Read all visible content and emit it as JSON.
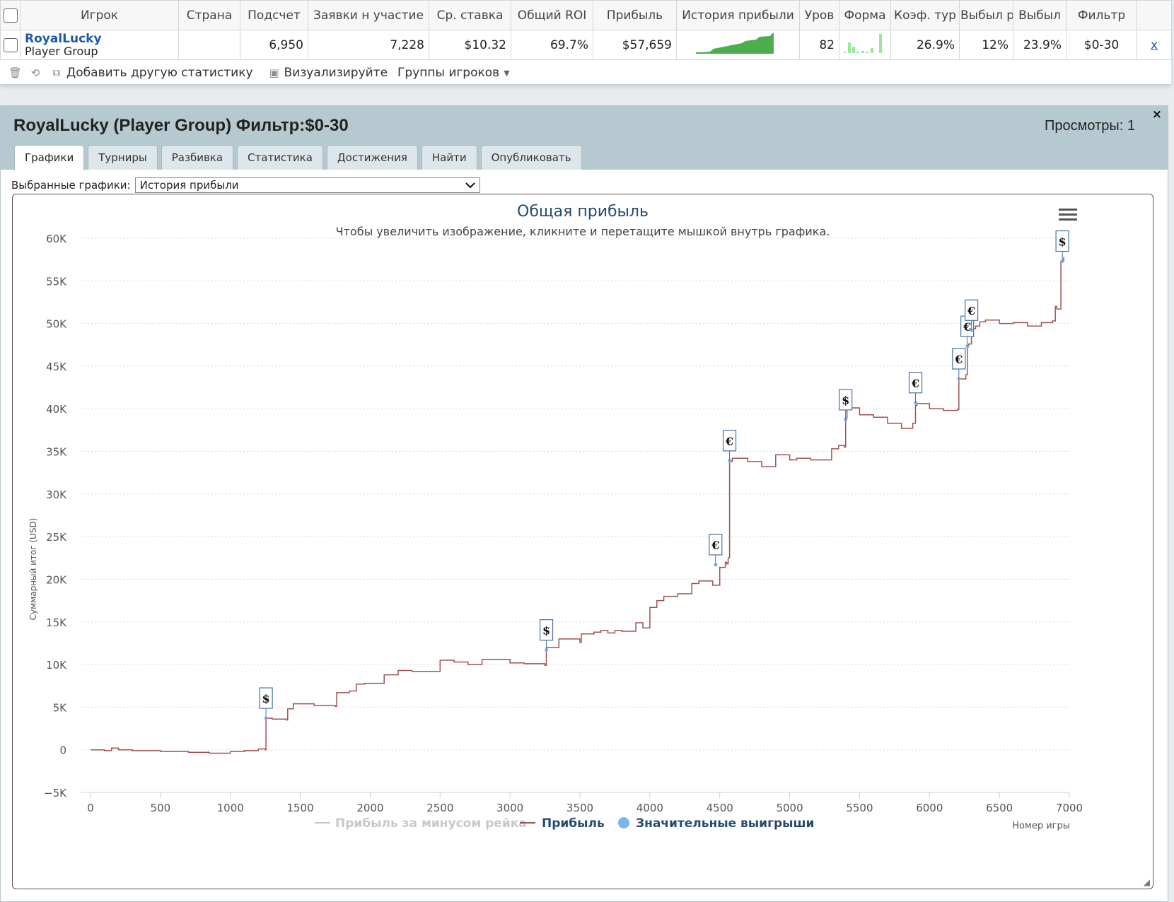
{
  "table": {
    "headers": [
      "Игрок",
      "Страна",
      "Подсчет",
      "Заявки н участие",
      "Ср. ставка",
      "Общий ROI",
      "Прибыль",
      "История прибыли",
      "Уров",
      "Форма",
      "Коэф. тур",
      "Выбыл р",
      "Выбыл",
      "Фильтр"
    ],
    "row": {
      "player_name": "RoyalLucky",
      "player_group": "Player Group",
      "country": "",
      "count": "6,950",
      "entries": "7,228",
      "avg_stake": "$10.32",
      "roi": "69.7%",
      "profit": "$57,659",
      "level": "82",
      "itm": "26.9%",
      "early": "12%",
      "late": "23.9%",
      "filter": "$0-30",
      "remove": "x"
    }
  },
  "toolbar": {
    "add_stat": "Добавить другую статистику",
    "visualize": "Визуализируйте",
    "groups": "Группы игроков"
  },
  "panel": {
    "title": "RoyalLucky (Player Group) Фильтр:$0-30",
    "views": "Просмотры: 1",
    "close": "×",
    "tabs": [
      "Графики",
      "Турниры",
      "Разбивка",
      "Статистика",
      "Достижения",
      "Найти",
      "Опубликовать"
    ],
    "selector_label": "Выбранные графики:",
    "selector_value": "История прибыли"
  },
  "colors": {
    "profit_line": "#a05252",
    "rake_line": "#c8c8c8",
    "big_win_marker": "#7cb5ec",
    "flag_border": "#4572a7",
    "title": "#274b6d"
  },
  "chart_data": {
    "type": "line",
    "title": "Общая прибыль",
    "subtitle": "Чтобы увеличить изображение, кликните и перетащите мышкой внутрь графика.",
    "xlabel": "Номер игры",
    "ylabel": "Суммарный итог (USD)",
    "xlim": [
      0,
      7000
    ],
    "ylim": [
      -5000,
      60000
    ],
    "x_ticks": [
      0,
      500,
      1000,
      1500,
      2000,
      2500,
      3000,
      3500,
      4000,
      4500,
      5000,
      5500,
      6000,
      6500,
      7000
    ],
    "y_ticks": [
      -5000,
      0,
      5000,
      10000,
      15000,
      20000,
      25000,
      30000,
      35000,
      40000,
      45000,
      50000,
      55000,
      60000
    ],
    "y_tick_labels": [
      "−5K",
      "0",
      "5K",
      "10K",
      "15K",
      "20K",
      "25K",
      "30K",
      "35K",
      "40K",
      "45K",
      "50K",
      "55K",
      "60K"
    ],
    "grid": true,
    "legend": {
      "placement": "bottom-center",
      "items": [
        "Прибыль за минусом рейка",
        "Прибыль",
        "Значительные выигрыши"
      ]
    },
    "series": [
      {
        "name": "Прибыль",
        "x": [
          0,
          100,
          150,
          200,
          300,
          500,
          700,
          850,
          1000,
          1100,
          1200,
          1250,
          1255,
          1300,
          1400,
          1410,
          1450,
          1600,
          1750,
          1760,
          1850,
          1900,
          1960,
          2100,
          2200,
          2300,
          2500,
          2600,
          2700,
          2800,
          3000,
          3100,
          3250,
          3260,
          3350,
          3500,
          3510,
          3600,
          3650,
          3700,
          3750,
          3800,
          3900,
          3950,
          4000,
          4050,
          4100,
          4200,
          4300,
          4350,
          4450,
          4500,
          4540,
          4550,
          4560,
          4570,
          4580,
          4590,
          4700,
          4800,
          4900,
          5000,
          5050,
          5150,
          5300,
          5350,
          5390,
          5400,
          5410,
          5500,
          5600,
          5700,
          5800,
          5880,
          5900,
          5910,
          6000,
          6100,
          6200,
          6210,
          6260,
          6270,
          6280,
          6300,
          6330,
          6360,
          6400,
          6500,
          6600,
          6700,
          6800,
          6880,
          6900,
          6910,
          6940,
          6960
        ],
        "y": [
          0,
          -100,
          200,
          0,
          -100,
          -200,
          -300,
          -400,
          -200,
          -100,
          100,
          0,
          3700,
          3600,
          3500,
          4800,
          5400,
          5200,
          5100,
          6700,
          6900,
          7700,
          7800,
          8800,
          9300,
          9200,
          10500,
          10300,
          10000,
          10600,
          10200,
          10100,
          9900,
          12000,
          13000,
          12600,
          13600,
          13800,
          14000,
          13700,
          14000,
          13900,
          14900,
          14300,
          16700,
          17500,
          18000,
          18300,
          19500,
          19800,
          19300,
          21400,
          22000,
          21800,
          22500,
          34000,
          33800,
          34200,
          33800,
          33200,
          34600,
          34000,
          34200,
          34000,
          35300,
          35700,
          35500,
          38900,
          40100,
          39300,
          39000,
          38300,
          37700,
          38300,
          40400,
          40600,
          40000,
          39800,
          39900,
          43500,
          44000,
          47300,
          47600,
          49400,
          49700,
          50200,
          50400,
          50000,
          50100,
          49700,
          50100,
          50300,
          52000,
          51700,
          57300,
          57800
        ]
      }
    ],
    "big_wins": [
      {
        "x": 1255,
        "y": 3700,
        "symbol": "$"
      },
      {
        "x": 3260,
        "y": 11700,
        "symbol": "$"
      },
      {
        "x": 4470,
        "y": 21700,
        "symbol": "€"
      },
      {
        "x": 4570,
        "y": 33900,
        "symbol": "€"
      },
      {
        "x": 5400,
        "y": 38700,
        "symbol": "$"
      },
      {
        "x": 5900,
        "y": 40700,
        "symbol": "€"
      },
      {
        "x": 6210,
        "y": 43500,
        "symbol": "€"
      },
      {
        "x": 6270,
        "y": 47300,
        "symbol": "€"
      },
      {
        "x": 6300,
        "y": 49200,
        "symbol": "€"
      },
      {
        "x": 6950,
        "y": 57300,
        "symbol": "$"
      }
    ]
  }
}
